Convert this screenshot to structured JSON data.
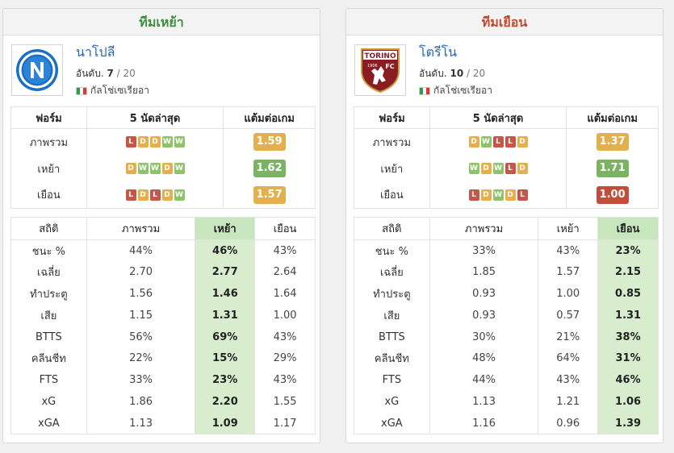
{
  "panels": [
    {
      "title": "ทีมเหย้า",
      "team_name": "นาโปลี",
      "rank_label": "อันดับ.",
      "rank": "7",
      "rank_total": "/ 20",
      "league": "กัลโช่เซเรียอา",
      "logo_icon": "napoli-logo-icon",
      "form_headers": [
        "ฟอร์ม",
        "5 นัดล่าสุด",
        "แต้มต่อเกม"
      ],
      "form_rows": [
        {
          "label": "ภาพรวม",
          "results": [
            "L",
            "D",
            "D",
            "W",
            "W"
          ],
          "ppg": "1.59",
          "ppg_level": "mid"
        },
        {
          "label": "เหย้า",
          "results": [
            "D",
            "W",
            "W",
            "D",
            "W"
          ],
          "ppg": "1.62",
          "ppg_level": "good"
        },
        {
          "label": "เยือน",
          "results": [
            "L",
            "D",
            "L",
            "D",
            "W"
          ],
          "ppg": "1.57",
          "ppg_level": "mid"
        }
      ],
      "stats_headers": [
        "สถิติ",
        "ภาพรวม",
        "เหย้า",
        "เยือน"
      ],
      "highlight_col": 2,
      "stats_rows": [
        {
          "label": "ชนะ %",
          "values": [
            "44%",
            "46%",
            "43%"
          ]
        },
        {
          "label": "เฉลี่ย",
          "values": [
            "2.70",
            "2.77",
            "2.64"
          ]
        },
        {
          "label": "ทำประตู",
          "values": [
            "1.56",
            "1.46",
            "1.64"
          ]
        },
        {
          "label": "เสีย",
          "values": [
            "1.15",
            "1.31",
            "1.00"
          ]
        },
        {
          "label": "BTTS",
          "values": [
            "56%",
            "69%",
            "43%"
          ]
        },
        {
          "label": "คลีนชีท",
          "values": [
            "22%",
            "15%",
            "29%"
          ]
        },
        {
          "label": "FTS",
          "values": [
            "33%",
            "23%",
            "43%"
          ]
        },
        {
          "label": "xG",
          "values": [
            "1.86",
            "2.20",
            "1.55"
          ]
        },
        {
          "label": "xGA",
          "values": [
            "1.13",
            "1.09",
            "1.17"
          ]
        }
      ]
    },
    {
      "title": "ทีมเยือน",
      "team_name": "โตรีโน",
      "rank_label": "อันดับ.",
      "rank": "10",
      "rank_total": "/ 20",
      "league": "กัลโช่เซเรียอา",
      "logo_icon": "torino-logo-icon",
      "logo_text_top": "TORINO",
      "logo_text_year": "1906",
      "logo_text_fc": "FC",
      "form_headers": [
        "ฟอร์ม",
        "5 นัดล่าสุด",
        "แต้มต่อเกม"
      ],
      "form_rows": [
        {
          "label": "ภาพรวม",
          "results": [
            "D",
            "W",
            "L",
            "L",
            "D"
          ],
          "ppg": "1.37",
          "ppg_level": "mid"
        },
        {
          "label": "เหย้า",
          "results": [
            "W",
            "D",
            "W",
            "L",
            "D"
          ],
          "ppg": "1.71",
          "ppg_level": "good"
        },
        {
          "label": "เยือน",
          "results": [
            "L",
            "D",
            "W",
            "D",
            "L"
          ],
          "ppg": "1.00",
          "ppg_level": "bad"
        }
      ],
      "stats_headers": [
        "สถิติ",
        "ภาพรวม",
        "เหย้า",
        "เยือน"
      ],
      "highlight_col": 3,
      "stats_rows": [
        {
          "label": "ชนะ %",
          "values": [
            "33%",
            "43%",
            "23%"
          ]
        },
        {
          "label": "เฉลี่ย",
          "values": [
            "1.85",
            "1.57",
            "2.15"
          ]
        },
        {
          "label": "ทำประตู",
          "values": [
            "0.93",
            "1.00",
            "0.85"
          ]
        },
        {
          "label": "เสีย",
          "values": [
            "0.93",
            "0.57",
            "1.31"
          ]
        },
        {
          "label": "BTTS",
          "values": [
            "30%",
            "21%",
            "38%"
          ]
        },
        {
          "label": "คลีนชีท",
          "values": [
            "48%",
            "64%",
            "31%"
          ]
        },
        {
          "label": "FTS",
          "values": [
            "44%",
            "43%",
            "46%"
          ]
        },
        {
          "label": "xG",
          "values": [
            "1.13",
            "1.21",
            "1.06"
          ]
        },
        {
          "label": "xGA",
          "values": [
            "1.16",
            "0.96",
            "1.39"
          ]
        }
      ]
    }
  ],
  "colors": {
    "win": "#8fc36a",
    "draw": "#e7ae4c",
    "loss": "#c4574a",
    "home_title": "#3e8e3e",
    "away_title": "#c0492e",
    "highlight": "#d7edce"
  }
}
